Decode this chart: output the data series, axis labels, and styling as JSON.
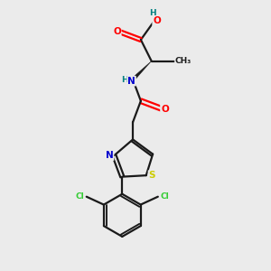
{
  "bg_color": "#ebebeb",
  "bond_color": "#1a1a1a",
  "colors": {
    "O": "#ff0000",
    "N": "#0000cd",
    "S": "#cccc00",
    "Cl": "#33cc33",
    "H": "#008080",
    "C": "#1a1a1a"
  },
  "lw": 1.6,
  "fontsize": 7.5
}
